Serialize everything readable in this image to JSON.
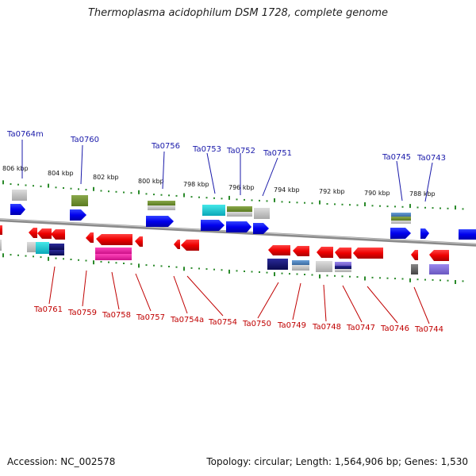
{
  "title": "Thermoplasma acidophilum DSM 1728, complete genome",
  "footer": {
    "accession": "Accession: NC_002578",
    "summary": "Topology: circular; Length: 1,564,906 bp; Genes: 1,530"
  },
  "colors": {
    "forward": "#0000ee",
    "reverse": "#ee0000",
    "forward_label": "#1a1aaa",
    "reverse_label": "#c00000",
    "tick": "#2a8a2a",
    "backbone": "#888888"
  },
  "scale_labels": [
    "806 kbp",
    "804 kbp",
    "802 kbp",
    "800 kbp",
    "798 kbp",
    "796 kbp",
    "794 kbp",
    "792 kbp",
    "790 kbp",
    "788 kbp"
  ],
  "top_labels": [
    "Ta0764m",
    "Ta0760",
    "Ta0756",
    "Ta0753",
    "Ta0752",
    "Ta0751",
    "Ta0745",
    "Ta0743"
  ],
  "bottom_labels": [
    "Ta0761",
    "Ta0759",
    "Ta0758",
    "Ta0757",
    "Ta0754a",
    "Ta0754",
    "Ta0750",
    "Ta0749",
    "Ta0748",
    "Ta0747",
    "Ta0746",
    "Ta0744"
  ]
}
